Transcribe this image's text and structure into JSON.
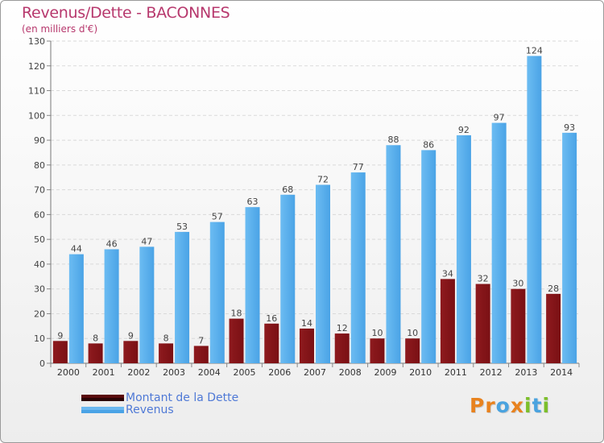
{
  "title": "Revenus/Dette - BACONNES",
  "subtitle": "(en milliers d'€)",
  "logo": {
    "letters": [
      "P",
      "r",
      "o",
      "x",
      "i",
      "t",
      "i"
    ],
    "colors": [
      "#e8821e",
      "#e8821e",
      "#4aa3df",
      "#e8821e",
      "#7cbf2a",
      "#4aa3df",
      "#7cbf2a"
    ]
  },
  "colors": {
    "dette": "#7a1014",
    "revenus": "#4aa3e6",
    "title": "#b7386d",
    "legend_text": "#4f79d6"
  },
  "legend": [
    {
      "label": "Montant de la Dette",
      "color": "#5a0a0d"
    },
    {
      "label": "Revenus",
      "color": "#4aa3e6"
    }
  ],
  "chart_data": {
    "type": "bar",
    "title": "Revenus/Dette - BACONNES",
    "ylabel": "(en milliers d'€)",
    "xlabel": "",
    "ylim": [
      0,
      130
    ],
    "yticks": [
      0,
      10,
      20,
      30,
      40,
      50,
      60,
      70,
      80,
      90,
      100,
      110,
      120,
      130
    ],
    "grid": true,
    "legend_position": "bottom-left",
    "categories": [
      "2000",
      "2001",
      "2002",
      "2003",
      "2004",
      "2005",
      "2006",
      "2007",
      "2008",
      "2009",
      "2010",
      "2011",
      "2012",
      "2013",
      "2014"
    ],
    "series": [
      {
        "name": "Montant de la Dette",
        "values": [
          9,
          8,
          9,
          8,
          7,
          18,
          16,
          14,
          12,
          10,
          10,
          34,
          32,
          30,
          28
        ]
      },
      {
        "name": "Revenus",
        "values": [
          44,
          46,
          47,
          53,
          57,
          63,
          68,
          72,
          77,
          88,
          86,
          92,
          97,
          124,
          93
        ]
      }
    ]
  }
}
